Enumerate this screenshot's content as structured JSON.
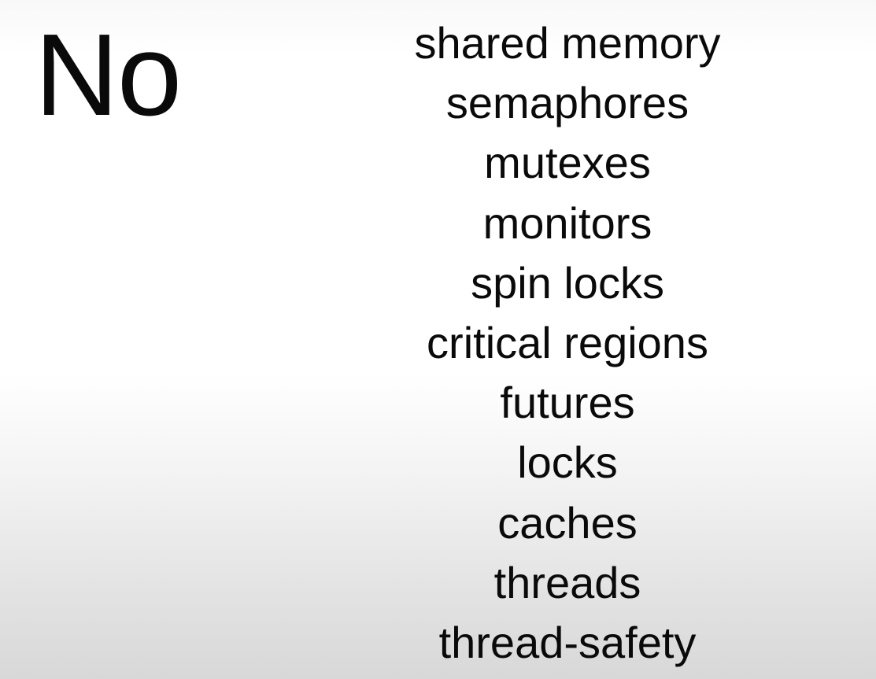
{
  "slide": {
    "heading": "No",
    "terms": [
      "shared memory",
      "semaphores",
      "mutexes",
      "monitors",
      "spin locks",
      "critical regions",
      "futures",
      "locks",
      "caches",
      "threads",
      "thread-safety"
    ]
  }
}
